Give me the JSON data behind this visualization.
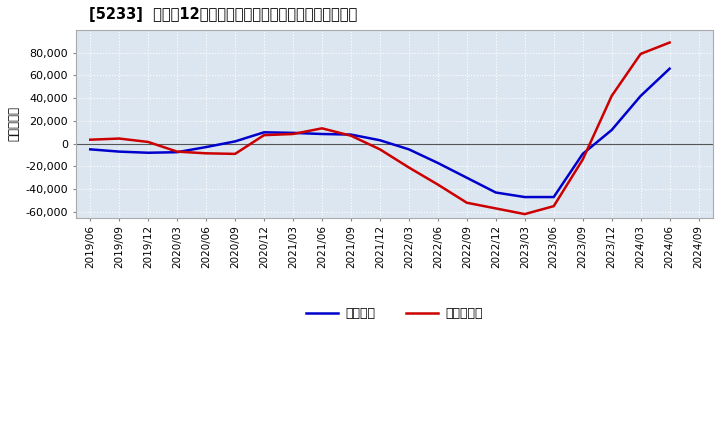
{
  "title": "[5233]  利益だ12か月移動合計の対前年同期増減額の推移",
  "ylabel": "（百万円）",
  "ylim": [
    -65000,
    100000
  ],
  "yticks": [
    -60000,
    -40000,
    -20000,
    0,
    20000,
    40000,
    60000,
    80000
  ],
  "background_color": "#ffffff",
  "plot_bg_color": "#dce6f1",
  "grid_color": "#ffffff",
  "legend_labels": [
    "経常利益",
    "当期純利益"
  ],
  "line_colors": [
    "#0000cc",
    "#cc0000"
  ],
  "dates": [
    "2019/06",
    "2019/09",
    "2019/12",
    "2020/03",
    "2020/06",
    "2020/09",
    "2020/12",
    "2021/03",
    "2021/06",
    "2021/09",
    "2021/12",
    "2022/03",
    "2022/06",
    "2022/09",
    "2022/12",
    "2023/03",
    "2023/06",
    "2023/09",
    "2023/12",
    "2024/03",
    "2024/06",
    "2024/09"
  ],
  "keijo_rieki": [
    -5000,
    -7000,
    -8000,
    -7500,
    -3000,
    2000,
    10000,
    9500,
    8500,
    8000,
    3000,
    -5000,
    -17000,
    -30000,
    -43000,
    -47000,
    -47000,
    -9000,
    12000,
    42000,
    66000,
    null
  ],
  "touki_junieki": [
    3500,
    4500,
    1500,
    -7000,
    -8500,
    -9000,
    7500,
    8500,
    13500,
    7000,
    -5000,
    -21000,
    -36000,
    -52000,
    -57000,
    -62000,
    -55000,
    -14000,
    42000,
    79000,
    89000,
    null
  ]
}
